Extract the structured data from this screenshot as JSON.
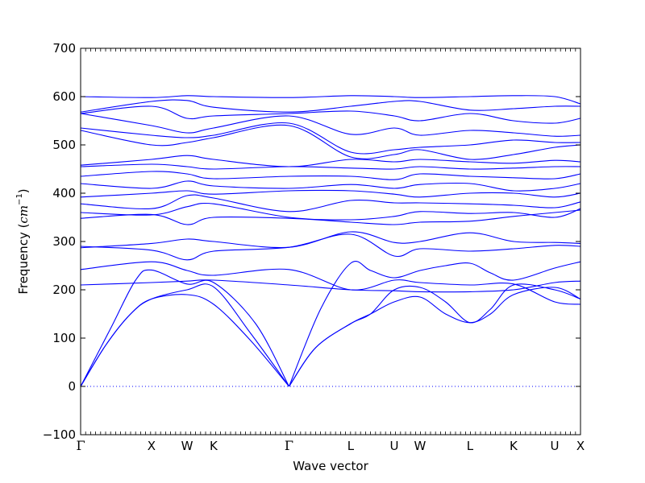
{
  "chart_data": {
    "type": "line",
    "title": "",
    "xlabel": "Wave vector",
    "ylabel_text": "Frequency (",
    "ylabel_math": "cm",
    "ylabel_exp": "−1",
    "ylabel_close": ")",
    "ylim": [
      -100,
      700
    ],
    "yticks": [
      -100,
      0,
      100,
      200,
      300,
      400,
      500,
      600,
      700
    ],
    "ytick_labels": [
      "−100",
      "0",
      "100",
      "200",
      "300",
      "400",
      "500",
      "600",
      "700"
    ],
    "xlim": [
      0,
      1
    ],
    "high_symmetry_points": [
      {
        "label": "Γ",
        "x": 0.0
      },
      {
        "label": "X",
        "x": 0.1418
      },
      {
        "label": "W",
        "x": 0.2129
      },
      {
        "label": "K",
        "x": 0.2661
      },
      {
        "label": "Γ",
        "x": 0.4169
      },
      {
        "label": "L",
        "x": 0.5403
      },
      {
        "label": "U",
        "x": 0.6274
      },
      {
        "label": "W",
        "x": 0.679
      },
      {
        "label": "L",
        "x": 0.779
      },
      {
        "label": "K",
        "x": 0.8661
      },
      {
        "label": "U",
        "x": 0.9484
      },
      {
        "label": "X",
        "x": 1.0
      }
    ],
    "zero_line": {
      "y": 0,
      "style": "dotted"
    },
    "grid": false,
    "legend": "none",
    "series_color": "#0000ff",
    "acoustic_branches": [
      {
        "x": [
          0,
          0.05,
          0.1,
          0.1418,
          0.2129,
          0.2661,
          0.34,
          0.4169
        ],
        "y": [
          0,
          85,
          150,
          181,
          200,
          206,
          110,
          0
        ]
      },
      {
        "x": [
          0,
          0.05,
          0.1,
          0.1418,
          0.2129,
          0.2661,
          0.34,
          0.4169
        ],
        "y": [
          0,
          85,
          150,
          181,
          190,
          170,
          95,
          0
        ]
      },
      {
        "x": [
          0,
          0.06,
          0.11,
          0.1418,
          0.2129,
          0.2661,
          0.35,
          0.4169
        ],
        "y": [
          0,
          120,
          220,
          241,
          212,
          215,
          130,
          0
        ]
      },
      {
        "x": [
          0.4169,
          0.47,
          0.5403,
          0.58,
          0.6274,
          0.679,
          0.73,
          0.779,
          0.82,
          0.8661,
          0.9484,
          1.0
        ],
        "y": [
          0,
          80,
          130,
          150,
          175,
          185,
          150,
          132,
          150,
          190,
          205,
          181
        ]
      },
      {
        "x": [
          0.4169,
          0.47,
          0.5403,
          0.58,
          0.6274,
          0.679,
          0.73,
          0.779,
          0.82,
          0.8661,
          0.9484,
          1.0
        ],
        "y": [
          0,
          80,
          130,
          150,
          200,
          205,
          175,
          132,
          160,
          210,
          200,
          181
        ]
      },
      {
        "x": [
          0.4169,
          0.48,
          0.5403,
          0.58,
          0.6274,
          0.679,
          0.73,
          0.779,
          0.82,
          0.8661,
          0.9484,
          1.0
        ],
        "y": [
          0,
          160,
          255,
          240,
          225,
          240,
          250,
          255,
          235,
          220,
          245,
          258
        ]
      }
    ],
    "optical_branches": [
      {
        "x": [
          0,
          0.1418,
          0.2129,
          0.2661,
          0.4169,
          0.5403,
          0.6274,
          0.679,
          0.779,
          0.8661,
          0.9484,
          1.0
        ],
        "y": [
          210,
          215,
          218,
          220,
          210,
          200,
          198,
          196,
          196,
          200,
          215,
          218
        ]
      },
      {
        "x": [
          0,
          0.1418,
          0.2129,
          0.2661,
          0.4169,
          0.5403,
          0.6274,
          0.679,
          0.779,
          0.8661,
          0.9484,
          1.0
        ],
        "y": [
          242,
          258,
          240,
          230,
          242,
          200,
          220,
          215,
          210,
          212,
          175,
          170
        ]
      },
      {
        "x": [
          0,
          0.1418,
          0.2129,
          0.2661,
          0.4169,
          0.5403,
          0.6274,
          0.679,
          0.779,
          0.8661,
          0.9484,
          1.0
        ],
        "y": [
          287,
          296,
          305,
          300,
          288,
          320,
          298,
          300,
          318,
          300,
          298,
          296
        ]
      },
      {
        "x": [
          0,
          0.1418,
          0.2129,
          0.2661,
          0.4169,
          0.5403,
          0.6274,
          0.679,
          0.779,
          0.8661,
          0.9484,
          1.0
        ],
        "y": [
          290,
          282,
          262,
          280,
          288,
          315,
          270,
          285,
          280,
          285,
          292,
          290
        ]
      },
      {
        "x": [
          0,
          0.1418,
          0.2129,
          0.2661,
          0.4169,
          0.5403,
          0.6274,
          0.679,
          0.779,
          0.8661,
          0.9484,
          1.0
        ],
        "y": [
          348,
          356,
          335,
          350,
          348,
          340,
          335,
          340,
          342,
          352,
          360,
          365
        ]
      },
      {
        "x": [
          0,
          0.1418,
          0.2129,
          0.2661,
          0.4169,
          0.5403,
          0.6274,
          0.679,
          0.779,
          0.8661,
          0.9484,
          1.0
        ],
        "y": [
          360,
          355,
          372,
          378,
          350,
          345,
          352,
          362,
          358,
          360,
          350,
          368
        ]
      },
      {
        "x": [
          0,
          0.1418,
          0.2129,
          0.2661,
          0.4169,
          0.5403,
          0.6274,
          0.679,
          0.779,
          0.8661,
          0.9484,
          1.0
        ],
        "y": [
          378,
          368,
          395,
          390,
          362,
          385,
          380,
          380,
          378,
          375,
          370,
          382
        ]
      },
      {
        "x": [
          0,
          0.1418,
          0.2129,
          0.2661,
          0.4169,
          0.5403,
          0.6274,
          0.679,
          0.779,
          0.8661,
          0.9484,
          1.0
        ],
        "y": [
          392,
          400,
          405,
          398,
          405,
          405,
          398,
          392,
          400,
          400,
          392,
          400
        ]
      },
      {
        "x": [
          0,
          0.1418,
          0.2129,
          0.2661,
          0.4169,
          0.5403,
          0.6274,
          0.679,
          0.779,
          0.8661,
          0.9484,
          1.0
        ],
        "y": [
          420,
          410,
          425,
          415,
          410,
          418,
          410,
          418,
          420,
          405,
          410,
          420
        ]
      },
      {
        "x": [
          0,
          0.1418,
          0.2129,
          0.2661,
          0.4169,
          0.5403,
          0.6274,
          0.679,
          0.779,
          0.8661,
          0.9484,
          1.0
        ],
        "y": [
          435,
          445,
          440,
          430,
          435,
          435,
          428,
          440,
          435,
          432,
          430,
          440
        ]
      },
      {
        "x": [
          0,
          0.1418,
          0.2129,
          0.2661,
          0.4169,
          0.5403,
          0.6274,
          0.679,
          0.779,
          0.8661,
          0.9484,
          1.0
        ],
        "y": [
          455,
          460,
          455,
          450,
          455,
          452,
          450,
          455,
          450,
          452,
          455,
          455
        ]
      },
      {
        "x": [
          0,
          0.1418,
          0.2129,
          0.2661,
          0.4169,
          0.5403,
          0.6274,
          0.679,
          0.779,
          0.8661,
          0.9484,
          1.0
        ],
        "y": [
          458,
          470,
          478,
          470,
          455,
          470,
          465,
          470,
          465,
          462,
          468,
          465
        ]
      },
      {
        "x": [
          0,
          0.1418,
          0.2129,
          0.2661,
          0.4169,
          0.5403,
          0.6274,
          0.679,
          0.779,
          0.8661,
          0.9484,
          1.0
        ],
        "y": [
          530,
          500,
          505,
          515,
          540,
          475,
          480,
          490,
          470,
          480,
          495,
          500
        ]
      },
      {
        "x": [
          0,
          0.1418,
          0.2129,
          0.2661,
          0.4169,
          0.5403,
          0.6274,
          0.679,
          0.779,
          0.8661,
          0.9484,
          1.0
        ],
        "y": [
          535,
          520,
          515,
          520,
          545,
          485,
          490,
          495,
          500,
          510,
          505,
          505
        ]
      },
      {
        "x": [
          0,
          0.1418,
          0.2129,
          0.2661,
          0.4169,
          0.5403,
          0.6274,
          0.679,
          0.779,
          0.8661,
          0.9484,
          1.0
        ],
        "y": [
          565,
          540,
          525,
          535,
          560,
          522,
          535,
          520,
          530,
          525,
          518,
          520
        ]
      },
      {
        "x": [
          0,
          0.1418,
          0.2129,
          0.2661,
          0.4169,
          0.5403,
          0.6274,
          0.679,
          0.779,
          0.8661,
          0.9484,
          1.0
        ],
        "y": [
          565,
          580,
          555,
          560,
          565,
          570,
          560,
          550,
          565,
          550,
          545,
          555
        ]
      },
      {
        "x": [
          0,
          0.1418,
          0.2129,
          0.2661,
          0.4169,
          0.5403,
          0.6274,
          0.679,
          0.779,
          0.8661,
          0.9484,
          1.0
        ],
        "y": [
          568,
          590,
          592,
          578,
          568,
          580,
          590,
          590,
          572,
          575,
          580,
          580
        ]
      },
      {
        "x": [
          0,
          0.1418,
          0.2129,
          0.2661,
          0.4169,
          0.5403,
          0.6274,
          0.679,
          0.779,
          0.8661,
          0.9484,
          1.0
        ],
        "y": [
          600,
          598,
          602,
          600,
          598,
          602,
          600,
          598,
          600,
          602,
          600,
          585
        ]
      }
    ]
  }
}
